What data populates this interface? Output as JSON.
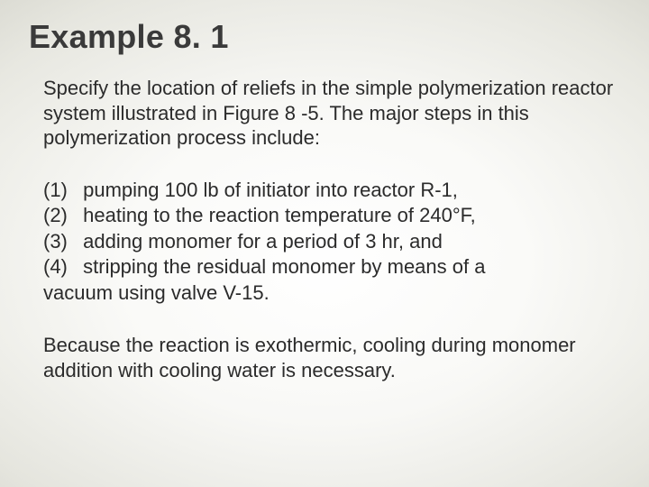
{
  "title": "Example 8. 1",
  "intro": "Specify the location of reliefs in the simple polymerization reactor system illustrated in Figure 8 -5. The major steps in this polymerization process include:",
  "steps": [
    {
      "num": "(1)",
      "text": "pumping 100 lb of initiator into reactor R-1,"
    },
    {
      "num": "(2)",
      "text": "heating to the reaction temperature of 240°F,"
    },
    {
      "num": "(3)",
      "text": "adding monomer for a period of 3 hr, and"
    },
    {
      "num": "(4)",
      "text": "stripping the residual monomer by means of a"
    }
  ],
  "step4_cont": "vacuum  using valve V-15.",
  "closing": "Because the reaction is exothermic, cooling during monomer addition with cooling water is necessary.",
  "colors": {
    "title": "#3a3a3a",
    "body": "#2b2b2b",
    "bg_center": "#fafaf7",
    "bg_edge": "#6e6e64"
  },
  "fonts": {
    "title_family": "Impact",
    "title_size_pt": 27,
    "body_family": "Arial",
    "body_size_pt": 17
  }
}
